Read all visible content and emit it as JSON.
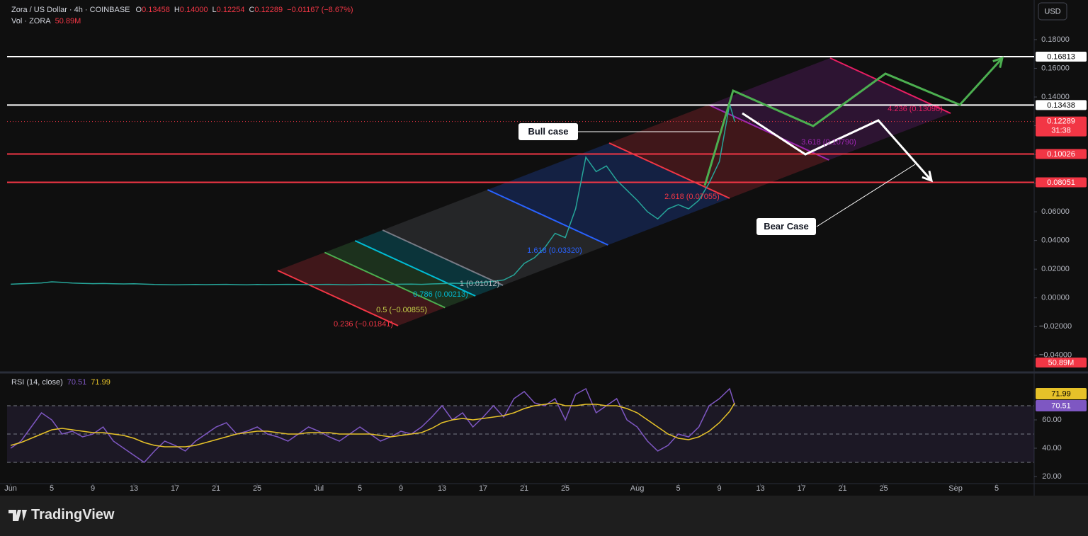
{
  "header": {
    "symbol": "Zora / US Dollar · 4h · COINBASE",
    "ohlc": [
      {
        "k": "O",
        "v": "0.13458"
      },
      {
        "k": "H",
        "v": "0.14000"
      },
      {
        "k": "L",
        "v": "0.12254"
      },
      {
        "k": "C",
        "v": "0.12289"
      }
    ],
    "change": "−0.01167 (−8.67%)",
    "volume_label": "Vol · ZORA",
    "volume_value": "50.89M"
  },
  "currency": "USD",
  "countdown": "31:38",
  "brand": "TradingView",
  "chart_data": [
    {
      "type": "line",
      "color": "#26a69a",
      "x": [
        0,
        1,
        2,
        3,
        4,
        5,
        6,
        7,
        8,
        9,
        10,
        11,
        12,
        13,
        14,
        15,
        16,
        17,
        18,
        19,
        20,
        21,
        22,
        23,
        24,
        25,
        26,
        27,
        28,
        29,
        30,
        31,
        32,
        33,
        34,
        35,
        36,
        37,
        38,
        39,
        40,
        41,
        42,
        43,
        44,
        45,
        46,
        47,
        48,
        49,
        50,
        51,
        52,
        53,
        54,
        55,
        56,
        57,
        58,
        59,
        60,
        61,
        62,
        63,
        64,
        65,
        66,
        67,
        68,
        69,
        70,
        70.5
      ],
      "values": [
        0.0095,
        0.0098,
        0.0101,
        0.0104,
        0.0112,
        0.0108,
        0.0103,
        0.0101,
        0.0099,
        0.01,
        0.0098,
        0.0097,
        0.0098,
        0.0096,
        0.0093,
        0.0092,
        0.0091,
        0.0092,
        0.0093,
        0.0092,
        0.0093,
        0.0094,
        0.0092,
        0.0091,
        0.0093,
        0.0092,
        0.0093,
        0.0094,
        0.0093,
        0.0092,
        0.0093,
        0.0094,
        0.0092,
        0.0091,
        0.0093,
        0.0094,
        0.0092,
        0.0093,
        0.0095,
        0.0096,
        0.0094,
        0.0097,
        0.0099,
        0.0102,
        0.0101,
        0.0103,
        0.0108,
        0.0115,
        0.0125,
        0.016,
        0.024,
        0.028,
        0.035,
        0.045,
        0.042,
        0.062,
        0.098,
        0.088,
        0.092,
        0.082,
        0.075,
        0.068,
        0.06,
        0.055,
        0.062,
        0.065,
        0.062,
        0.068,
        0.08,
        0.095,
        0.135,
        0.12289
      ],
      "xlim": [
        -0.35,
        99.65
      ],
      "xticks": [
        {
          "value": 0,
          "label": "Jun"
        },
        {
          "value": 4,
          "label": "5"
        },
        {
          "value": 8,
          "label": "9"
        },
        {
          "value": 12,
          "label": "13"
        },
        {
          "value": 16,
          "label": "17"
        },
        {
          "value": 20,
          "label": "21"
        },
        {
          "value": 24,
          "label": "25"
        },
        {
          "value": 30,
          "label": "Jul"
        },
        {
          "value": 34,
          "label": "5"
        },
        {
          "value": 38,
          "label": "9"
        },
        {
          "value": 42,
          "label": "13"
        },
        {
          "value": 46,
          "label": "17"
        },
        {
          "value": 50,
          "label": "21"
        },
        {
          "value": 54,
          "label": "25"
        },
        {
          "value": 61,
          "label": "Aug"
        },
        {
          "value": 65,
          "label": "5"
        },
        {
          "value": 69,
          "label": "9"
        },
        {
          "value": 73,
          "label": "13"
        },
        {
          "value": 77,
          "label": "17"
        },
        {
          "value": 81,
          "label": "21"
        },
        {
          "value": 85,
          "label": "25"
        },
        {
          "value": 92,
          "label": "Sep"
        },
        {
          "value": 96,
          "label": "5"
        }
      ],
      "ylim": [
        -0.05,
        0.2076
      ],
      "yticks": [
        {
          "value": -0.04,
          "label": "−0.04000"
        },
        {
          "value": -0.02,
          "label": "−0.02000"
        },
        {
          "value": 0,
          "label": "0.00000"
        },
        {
          "value": 0.02,
          "label": "0.02000"
        },
        {
          "value": 0.04,
          "label": "0.04000"
        },
        {
          "value": 0.06,
          "label": "0.06000"
        },
        {
          "value": 0.08,
          "label": "0.08000"
        },
        {
          "value": 0.1,
          "label": "0.10000"
        },
        {
          "value": 0.12,
          "label": "0.12000"
        },
        {
          "value": 0.14,
          "label": "0.14000"
        },
        {
          "value": 0.16,
          "label": "0.16000"
        },
        {
          "value": 0.18,
          "label": "0.18000"
        }
      ],
      "grid": false,
      "price_lines": [
        {
          "value": 0.16813,
          "color": "#ffffff"
        },
        {
          "value": 0.13438,
          "color": "#ffffff"
        },
        {
          "value": 0.10026,
          "color": "#f23645"
        },
        {
          "value": 0.08051,
          "color": "#f23645"
        }
      ],
      "annotations": [
        "Bull case",
        "Bear Case",
        "0.236 (−0.01841)",
        "0.5 (−0.00855)",
        "0.786 (0.00213)",
        "1 (0.01012)",
        "1.618 (0.03320)",
        "2.618 (0.07055)",
        "3.618 (0.10790)",
        "4.236 (0.13098)"
      ]
    },
    {
      "type": "line",
      "title": "RSI (14, close)",
      "x": [
        0,
        1,
        2,
        3,
        4,
        5,
        6,
        7,
        8,
        9,
        10,
        11,
        12,
        13,
        14,
        15,
        16,
        17,
        18,
        19,
        20,
        21,
        22,
        23,
        24,
        25,
        26,
        27,
        28,
        29,
        30,
        31,
        32,
        33,
        34,
        35,
        36,
        37,
        38,
        39,
        40,
        41,
        42,
        43,
        44,
        45,
        46,
        47,
        48,
        49,
        50,
        51,
        52,
        53,
        54,
        55,
        56,
        57,
        58,
        59,
        60,
        61,
        62,
        63,
        64,
        65,
        66,
        67,
        68,
        69,
        70,
        70.5
      ],
      "series": [
        {
          "color": "#7e57c2",
          "values": [
            40,
            45,
            55,
            65,
            60,
            50,
            52,
            48,
            50,
            55,
            45,
            40,
            35,
            30,
            38,
            45,
            42,
            38,
            45,
            50,
            55,
            58,
            50,
            52,
            55,
            50,
            48,
            45,
            50,
            55,
            52,
            48,
            45,
            50,
            55,
            50,
            45,
            48,
            52,
            50,
            55,
            62,
            70,
            60,
            65,
            55,
            62,
            70,
            62,
            75,
            80,
            72,
            70,
            75,
            60,
            78,
            82,
            65,
            70,
            75,
            60,
            55,
            45,
            38,
            42,
            50,
            48,
            55,
            70,
            75,
            82,
            70.51
          ]
        },
        {
          "color": "#e6c229",
          "values": [
            42,
            44,
            47,
            50,
            53,
            54,
            53,
            52,
            51,
            51,
            50,
            49,
            47,
            44,
            42,
            41,
            41,
            41,
            42,
            44,
            46,
            48,
            50,
            51,
            52,
            52,
            51,
            50,
            50,
            51,
            51,
            51,
            50,
            50,
            50,
            50,
            49,
            48,
            49,
            50,
            51,
            54,
            58,
            60,
            61,
            60,
            61,
            62,
            63,
            65,
            68,
            70,
            71,
            72,
            70,
            70,
            71,
            71,
            70,
            70,
            68,
            65,
            60,
            55,
            50,
            47,
            46,
            48,
            52,
            58,
            66,
            71.99
          ]
        }
      ],
      "xlim": [
        -0.35,
        99.65
      ],
      "ylim": [
        16.5,
        91.5
      ],
      "yticks": [
        {
          "value": 20,
          "label": "20.00"
        },
        {
          "value": 40,
          "label": "40.00"
        },
        {
          "value": 60,
          "label": "60.00"
        }
      ],
      "levels": [
        30,
        50,
        70
      ]
    }
  ]
}
